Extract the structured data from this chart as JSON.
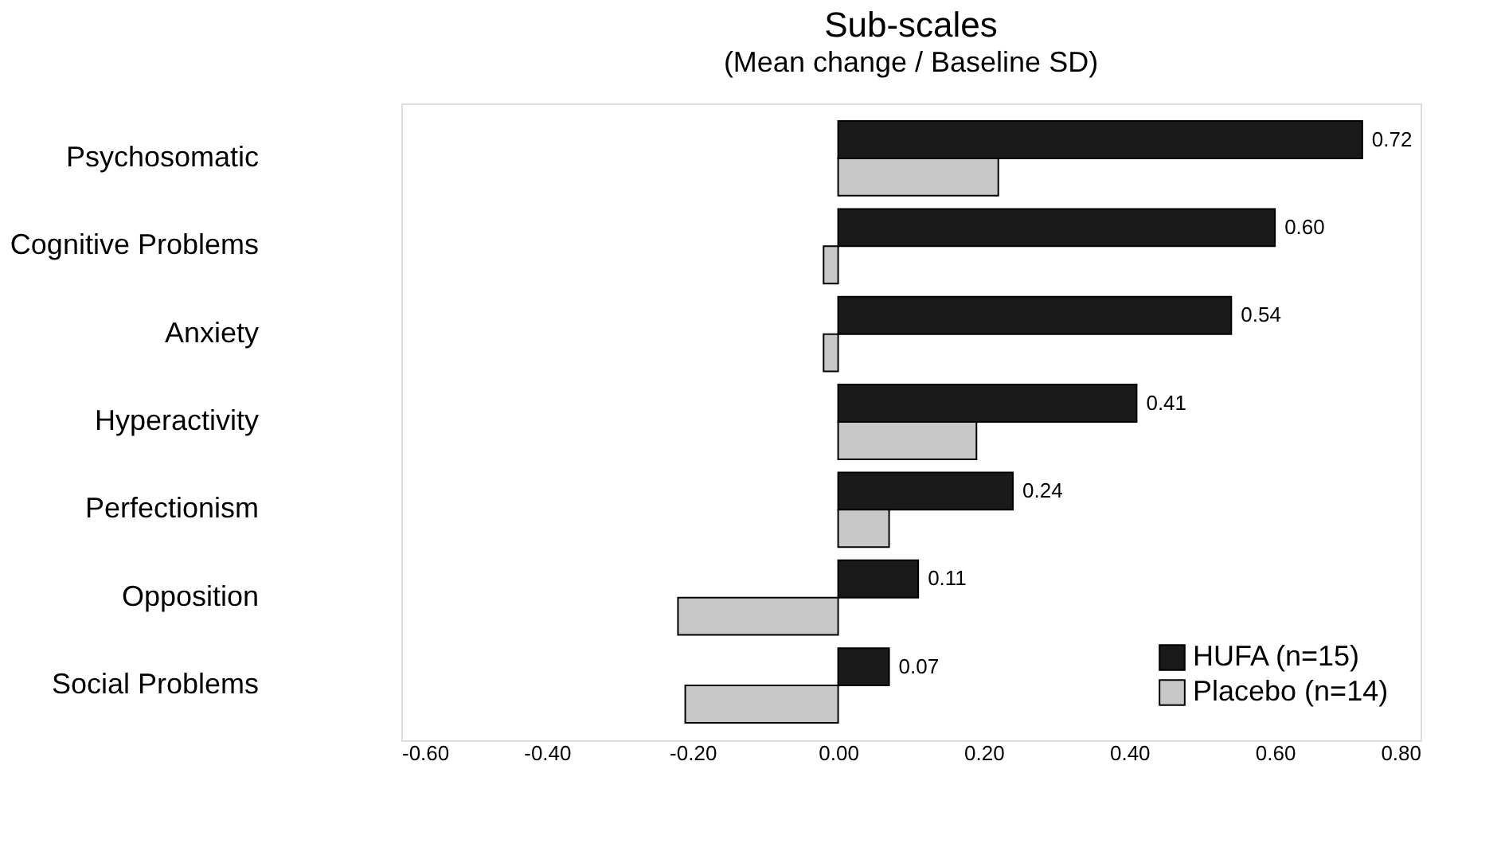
{
  "chart_data": {
    "type": "bar",
    "orientation": "horizontal",
    "title": "Sub-scales",
    "subtitle": "(Mean change / Baseline SD)",
    "categories": [
      "Psychosomatic",
      "Cognitive Problems",
      "Anxiety",
      "Hyperactivity",
      "Perfectionism",
      "Opposition",
      "Social Problems"
    ],
    "series": [
      {
        "name": "HUFA (n=15)",
        "color": "#1a1a1a",
        "values": [
          0.72,
          0.6,
          0.54,
          0.41,
          0.24,
          0.11,
          0.07
        ],
        "value_labels": [
          "0.72",
          "0.60",
          "0.54",
          "0.41",
          "0.24",
          "0.11",
          "0.07"
        ]
      },
      {
        "name": "Placebo (n=14)",
        "color": "#c8c8c8",
        "values": [
          0.22,
          -0.02,
          -0.02,
          0.19,
          0.07,
          -0.22,
          -0.21
        ]
      }
    ],
    "xlim": [
      -0.6,
      0.8
    ],
    "xticks": [
      {
        "value": -0.6,
        "label": "-0.60"
      },
      {
        "value": -0.4,
        "label": "-0.40"
      },
      {
        "value": -0.2,
        "label": "-0.20"
      },
      {
        "value": 0,
        "label": "0.00"
      },
      {
        "value": 0.2,
        "label": "0.20"
      },
      {
        "value": 0.4,
        "label": "0.40"
      },
      {
        "value": 0.6,
        "label": "0.60"
      },
      {
        "value": 0.8,
        "label": "0.80"
      }
    ],
    "grid": false,
    "legend": "bottom right"
  }
}
